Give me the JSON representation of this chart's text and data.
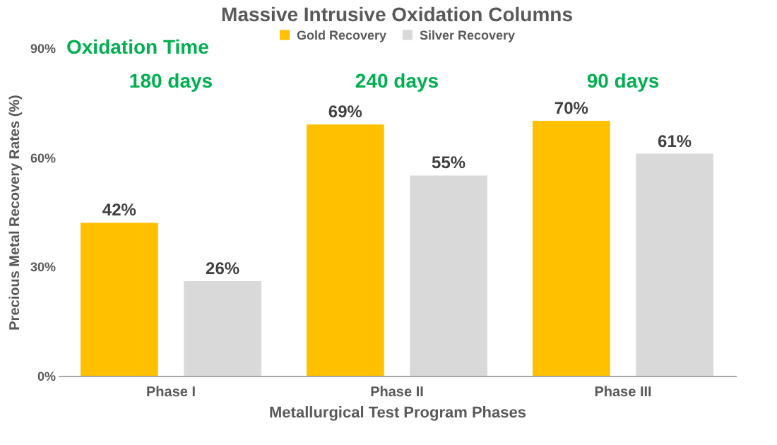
{
  "chart_data": {
    "type": "bar",
    "title": "Massive Intrusive Oxidation Columns",
    "xlabel": "Metallurgical Test Program Phases",
    "ylabel": "Precious Metal Recovery Rates (%)",
    "categories": [
      "Phase I",
      "Phase II",
      "Phase III"
    ],
    "series": [
      {
        "name": "Gold Recovery",
        "color": "#ffc000",
        "values": [
          42,
          69,
          70
        ],
        "value_labels": [
          "42%",
          "69%",
          "70%"
        ]
      },
      {
        "name": "Silver Recovery",
        "color": "#d9d9d9",
        "values": [
          26,
          55,
          61
        ],
        "value_labels": [
          "26%",
          "55%",
          "61%"
        ]
      }
    ],
    "ylim": [
      0,
      90
    ],
    "yticks": [
      {
        "value": 0,
        "label": "0%"
      },
      {
        "value": 30,
        "label": "30%"
      },
      {
        "value": 60,
        "label": "60%"
      },
      {
        "value": 90,
        "label": "90%"
      }
    ],
    "annotations": [
      "Oxidation Time",
      "180 days",
      "240 days",
      "90 days"
    ],
    "grid": false,
    "legend": "top"
  }
}
